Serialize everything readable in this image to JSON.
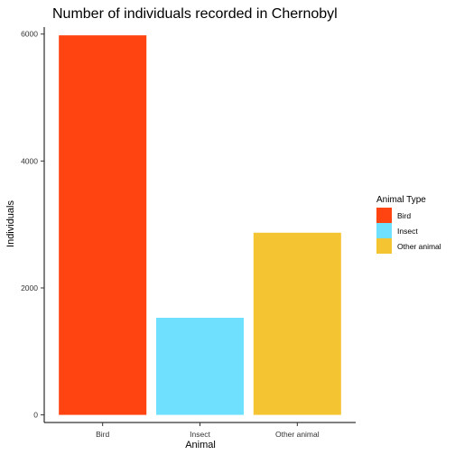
{
  "chart_data": {
    "type": "bar",
    "title": "Number of individuals recorded in Chernobyl",
    "xlabel": "Animal",
    "ylabel": "Individuals",
    "categories": [
      "Bird",
      "Insect",
      "Other animal"
    ],
    "values": [
      5980,
      1530,
      2870
    ],
    "colors": [
      "#FF4411",
      "#70E0FF",
      "#F5C432"
    ],
    "ylim": [
      -120,
      6110
    ],
    "yticks": [
      0,
      2000,
      4000,
      6000
    ],
    "yticklabels": [
      "0",
      "2000",
      "4000",
      "6000"
    ],
    "grid": false,
    "legend": {
      "title": "Animal Type",
      "placement": "right",
      "entries": [
        "Bird",
        "Insect",
        "Other animal"
      ]
    }
  }
}
